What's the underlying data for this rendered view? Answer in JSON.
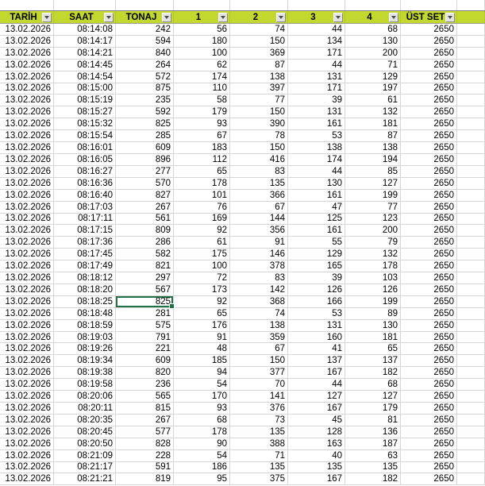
{
  "sheet": {
    "colors": {
      "header_bg": "#c3d82f",
      "gridline": "#d6d6d6",
      "selection": "#217346"
    },
    "columns": [
      {
        "label": "TARİH",
        "filter": true
      },
      {
        "label": "SAAT",
        "filter": true
      },
      {
        "label": "TONAJ",
        "filter": true
      },
      {
        "label": "1",
        "filter": true
      },
      {
        "label": "2",
        "filter": true
      },
      {
        "label": "3",
        "filter": true
      },
      {
        "label": "4",
        "filter": true
      },
      {
        "label": "ÜST SET",
        "filter": true
      },
      {
        "label": "",
        "filter": false
      }
    ],
    "filter_icon": "filter-dropdown-arrow",
    "selected_cell": {
      "row_index": 23,
      "col_index": 2,
      "value": "825"
    },
    "rows": [
      [
        "13.02.2026",
        "08:14:08",
        "242",
        "56",
        "74",
        "44",
        "68",
        "2650"
      ],
      [
        "13.02.2026",
        "08:14:17",
        "594",
        "180",
        "150",
        "134",
        "130",
        "2650"
      ],
      [
        "13.02.2026",
        "08:14:21",
        "840",
        "100",
        "369",
        "171",
        "200",
        "2650"
      ],
      [
        "13.02.2026",
        "08:14:45",
        "264",
        "62",
        "87",
        "44",
        "71",
        "2650"
      ],
      [
        "13.02.2026",
        "08:14:54",
        "572",
        "174",
        "138",
        "131",
        "129",
        "2650"
      ],
      [
        "13.02.2026",
        "08:15:00",
        "875",
        "110",
        "397",
        "171",
        "197",
        "2650"
      ],
      [
        "13.02.2026",
        "08:15:19",
        "235",
        "58",
        "77",
        "39",
        "61",
        "2650"
      ],
      [
        "13.02.2026",
        "08:15:27",
        "592",
        "179",
        "150",
        "131",
        "132",
        "2650"
      ],
      [
        "13.02.2026",
        "08:15:32",
        "825",
        "93",
        "390",
        "161",
        "181",
        "2650"
      ],
      [
        "13.02.2026",
        "08:15:54",
        "285",
        "67",
        "78",
        "53",
        "87",
        "2650"
      ],
      [
        "13.02.2026",
        "08:16:01",
        "609",
        "183",
        "150",
        "138",
        "138",
        "2650"
      ],
      [
        "13.02.2026",
        "08:16:05",
        "896",
        "112",
        "416",
        "174",
        "194",
        "2650"
      ],
      [
        "13.02.2026",
        "08:16:27",
        "277",
        "65",
        "83",
        "44",
        "85",
        "2650"
      ],
      [
        "13.02.2026",
        "08:16:36",
        "570",
        "178",
        "135",
        "130",
        "127",
        "2650"
      ],
      [
        "13.02.2026",
        "08:16:40",
        "827",
        "101",
        "366",
        "161",
        "199",
        "2650"
      ],
      [
        "13.02.2026",
        "08:17:03",
        "267",
        "76",
        "67",
        "47",
        "77",
        "2650"
      ],
      [
        "13.02.2026",
        "08:17:11",
        "561",
        "169",
        "144",
        "125",
        "123",
        "2650"
      ],
      [
        "13.02.2026",
        "08:17:15",
        "809",
        "92",
        "356",
        "161",
        "200",
        "2650"
      ],
      [
        "13.02.2026",
        "08:17:36",
        "286",
        "61",
        "91",
        "55",
        "79",
        "2650"
      ],
      [
        "13.02.2026",
        "08:17:45",
        "582",
        "175",
        "146",
        "129",
        "132",
        "2650"
      ],
      [
        "13.02.2026",
        "08:17:49",
        "821",
        "100",
        "378",
        "165",
        "178",
        "2650"
      ],
      [
        "13.02.2026",
        "08:18:12",
        "297",
        "72",
        "83",
        "39",
        "103",
        "2650"
      ],
      [
        "13.02.2026",
        "08:18:20",
        "567",
        "173",
        "142",
        "126",
        "126",
        "2650"
      ],
      [
        "13.02.2026",
        "08:18:25",
        "825",
        "92",
        "368",
        "166",
        "199",
        "2650"
      ],
      [
        "13.02.2026",
        "08:18:48",
        "281",
        "65",
        "74",
        "53",
        "89",
        "2650"
      ],
      [
        "13.02.2026",
        "08:18:59",
        "575",
        "176",
        "138",
        "131",
        "130",
        "2650"
      ],
      [
        "13.02.2026",
        "08:19:03",
        "791",
        "91",
        "359",
        "160",
        "181",
        "2650"
      ],
      [
        "13.02.2026",
        "08:19:26",
        "221",
        "48",
        "67",
        "41",
        "65",
        "2650"
      ],
      [
        "13.02.2026",
        "08:19:34",
        "609",
        "185",
        "150",
        "137",
        "137",
        "2650"
      ],
      [
        "13.02.2026",
        "08:19:38",
        "820",
        "94",
        "377",
        "167",
        "182",
        "2650"
      ],
      [
        "13.02.2026",
        "08:19:58",
        "236",
        "54",
        "70",
        "44",
        "68",
        "2650"
      ],
      [
        "13.02.2026",
        "08:20:06",
        "565",
        "170",
        "141",
        "127",
        "127",
        "2650"
      ],
      [
        "13.02.2026",
        "08:20:11",
        "815",
        "93",
        "376",
        "167",
        "179",
        "2650"
      ],
      [
        "13.02.2026",
        "08:20:35",
        "267",
        "68",
        "73",
        "45",
        "81",
        "2650"
      ],
      [
        "13.02.2026",
        "08:20:45",
        "577",
        "178",
        "135",
        "128",
        "136",
        "2650"
      ],
      [
        "13.02.2026",
        "08:20:50",
        "828",
        "90",
        "388",
        "163",
        "187",
        "2650"
      ],
      [
        "13.02.2026",
        "08:21:09",
        "228",
        "54",
        "71",
        "40",
        "63",
        "2650"
      ],
      [
        "13.02.2026",
        "08:21:17",
        "591",
        "186",
        "135",
        "135",
        "135",
        "2650"
      ],
      [
        "13.02.2026",
        "08:21:21",
        "819",
        "95",
        "375",
        "167",
        "182",
        "2650"
      ]
    ]
  }
}
